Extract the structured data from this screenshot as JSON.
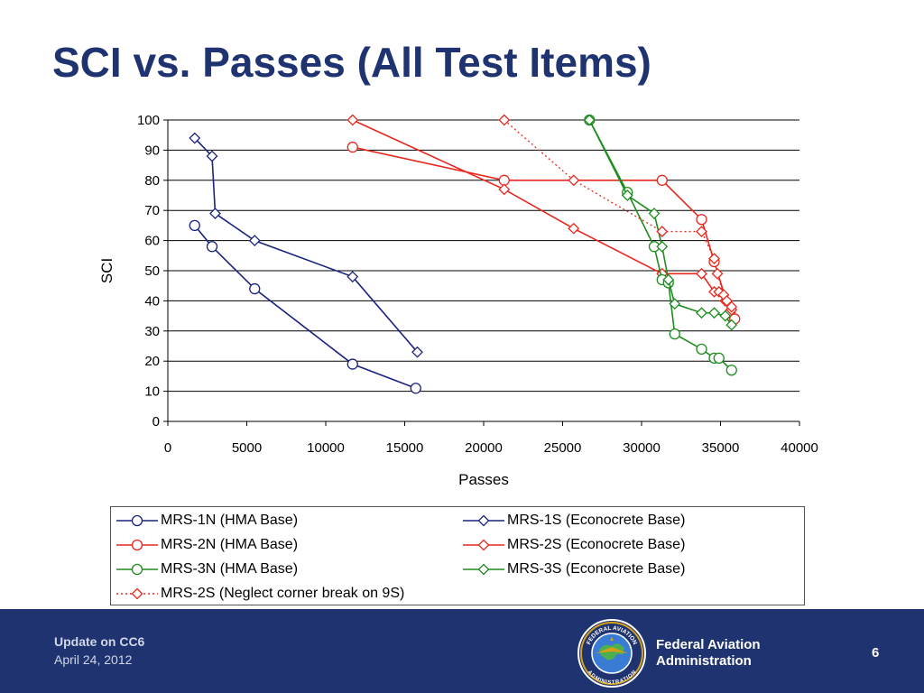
{
  "slide": {
    "title": "SCI vs. Passes (All Test Items)"
  },
  "footer": {
    "title": "Update on CC6",
    "date": "April 24, 2012",
    "agency_line1": "Federal Aviation",
    "agency_line2": "Administration",
    "page_number": "6",
    "seal_text_top": "FEDERAL AVIATION",
    "seal_text_bottom": "ADMINISTRATION"
  },
  "colors": {
    "title": "#1f3371",
    "footer_bg": "#1f3371",
    "mrs1": "#1a237e",
    "mrs2": "#e8271e",
    "mrs3": "#1e8c1e",
    "grid": "#000000"
  },
  "chart_data": {
    "type": "line",
    "title": "",
    "xlabel": "Passes",
    "ylabel": "SCI",
    "xlim": [
      0,
      40000
    ],
    "ylim": [
      0,
      100
    ],
    "x_ticks": [
      0,
      5000,
      10000,
      15000,
      20000,
      25000,
      30000,
      35000,
      40000
    ],
    "y_ticks": [
      0,
      10,
      20,
      30,
      40,
      50,
      60,
      70,
      80,
      90,
      100
    ],
    "grid": "horizontal",
    "legend_position": "bottom",
    "series": [
      {
        "name": "MRS-1N (HMA Base)",
        "color": "#1a237e",
        "marker": "circle",
        "dash": "solid",
        "x": [
          1700,
          2800,
          5500,
          11700,
          15700
        ],
        "y": [
          65,
          58,
          44,
          19,
          11
        ]
      },
      {
        "name": "MRS-1S (Econocrete Base)",
        "color": "#1a237e",
        "marker": "diamond",
        "dash": "solid",
        "x": [
          1700,
          2800,
          3000,
          5500,
          11700,
          15800
        ],
        "y": [
          94,
          88,
          69,
          60,
          48,
          23
        ]
      },
      {
        "name": "MRS-2N (HMA Base)",
        "color": "#e8271e",
        "marker": "circle",
        "dash": "solid",
        "x": [
          11700,
          21300,
          31300,
          33800,
          34600,
          35600,
          35900
        ],
        "y": [
          91,
          80,
          80,
          67,
          53,
          36,
          34
        ]
      },
      {
        "name": "MRS-2S (Econocrete Base)",
        "color": "#e8271e",
        "marker": "diamond",
        "dash": "solid",
        "x": [
          11700,
          21300,
          25700,
          31300,
          33800,
          34600,
          34900,
          35300,
          35700
        ],
        "y": [
          100,
          77,
          64,
          49,
          49,
          43,
          43,
          40,
          37
        ]
      },
      {
        "name": "MRS-3N (HMA Base)",
        "color": "#1e8c1e",
        "marker": "circle",
        "dash": "solid",
        "x": [
          26700,
          29100,
          30800,
          31300,
          31700,
          32100,
          33800,
          34600,
          34900,
          35700
        ],
        "y": [
          100,
          76,
          58,
          47,
          46,
          29,
          24,
          21,
          21,
          17
        ]
      },
      {
        "name": "MRS-3S (Econocrete Base)",
        "color": "#1e8c1e",
        "marker": "diamond",
        "dash": "solid",
        "x": [
          26700,
          29100,
          30800,
          31300,
          31700,
          32100,
          33800,
          34600,
          35300,
          35700
        ],
        "y": [
          100,
          75,
          69,
          58,
          47,
          39,
          36,
          36,
          35,
          32
        ]
      },
      {
        "name": "MRS-2S (Neglect corner break on 9S)",
        "color": "#e8271e",
        "marker": "diamond",
        "dash": "dotted",
        "x": [
          21300,
          25700,
          31300,
          33800,
          34600,
          34800,
          35200,
          35400,
          35700
        ],
        "y": [
          100,
          80,
          63,
          63,
          54,
          49,
          42,
          40,
          38
        ]
      }
    ]
  }
}
